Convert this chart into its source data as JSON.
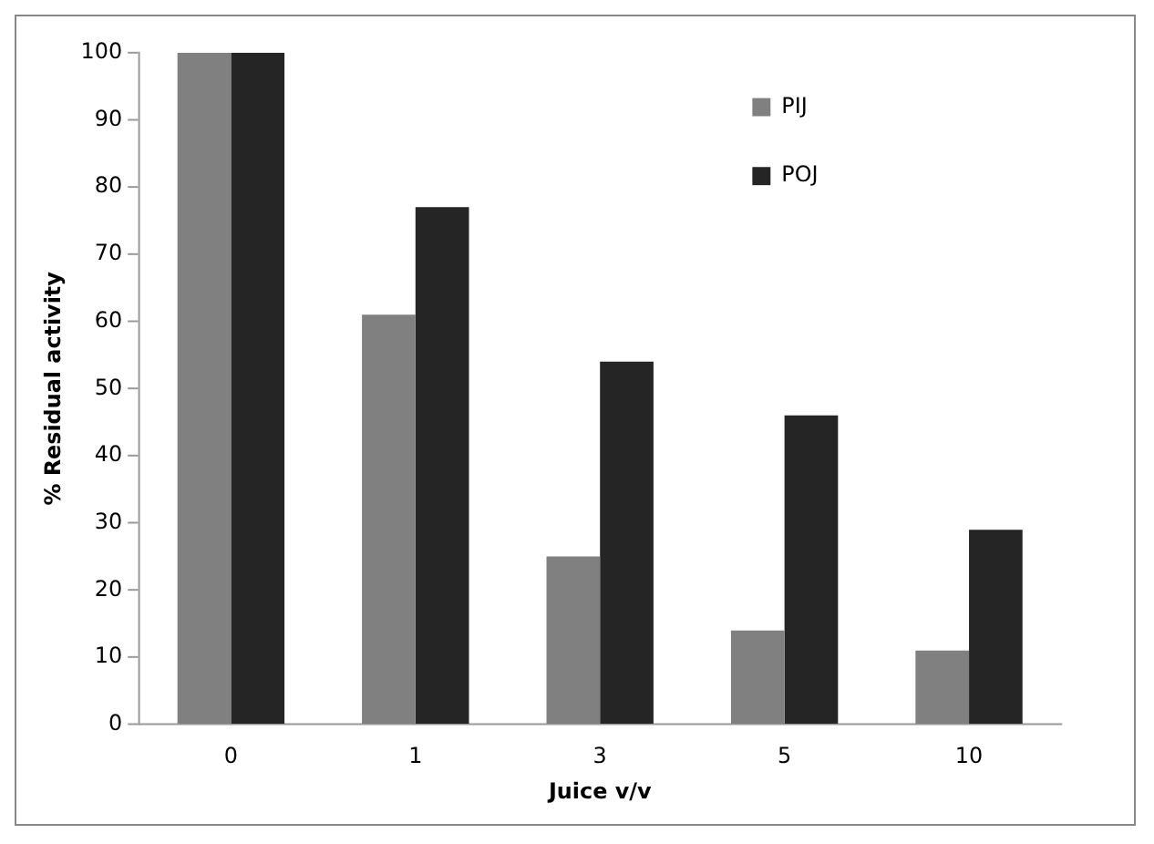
{
  "chart_data": {
    "type": "bar",
    "xlabel": "Juice v/v",
    "ylabel": "% Residual activity",
    "categories": [
      "0",
      "1",
      "3",
      "5",
      "10"
    ],
    "series": [
      {
        "name": "PIJ",
        "color": "#808080",
        "values": [
          100,
          61,
          25,
          14,
          11
        ]
      },
      {
        "name": "POJ",
        "color": "#252525",
        "values": [
          100,
          77,
          54,
          46,
          29
        ]
      }
    ],
    "ylim": [
      0,
      100
    ],
    "yticks": [
      0,
      10,
      20,
      30,
      40,
      50,
      60,
      70,
      80,
      90,
      100
    ],
    "grid": false,
    "legend": "top right"
  }
}
